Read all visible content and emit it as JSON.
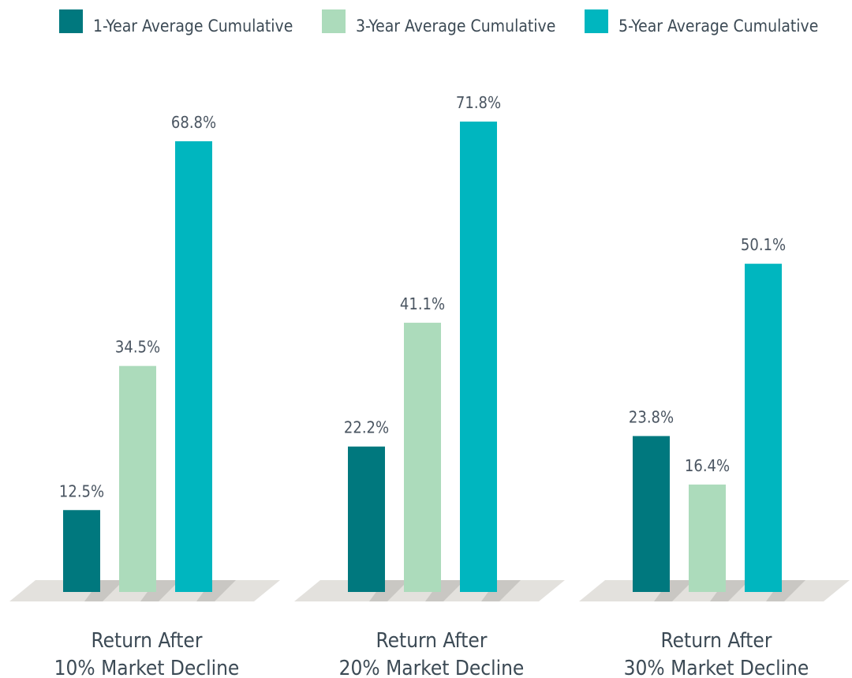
{
  "chart_data": {
    "type": "bar",
    "categories": [
      "Return After\n10% Market Decline",
      "Return After\n20% Market Decline",
      "Return After\n30% Market Decline"
    ],
    "series": [
      {
        "name": "1-Year Average Cumulative",
        "color": "#00787e",
        "values": [
          12.5,
          22.2,
          23.8
        ],
        "value_labels": [
          "12.5%",
          "22.2%",
          "23.8%"
        ]
      },
      {
        "name": "3-Year Average Cumulative",
        "color": "#acdbbb",
        "values": [
          34.5,
          41.1,
          16.4
        ],
        "value_labels": [
          "34.5%",
          "41.1%",
          "16.4%"
        ]
      },
      {
        "name": "5-Year Average Cumulative",
        "color": "#00b6bf",
        "values": [
          68.8,
          71.8,
          50.1
        ],
        "value_labels": [
          "68.8%",
          "71.8%",
          "50.1%"
        ]
      }
    ]
  }
}
